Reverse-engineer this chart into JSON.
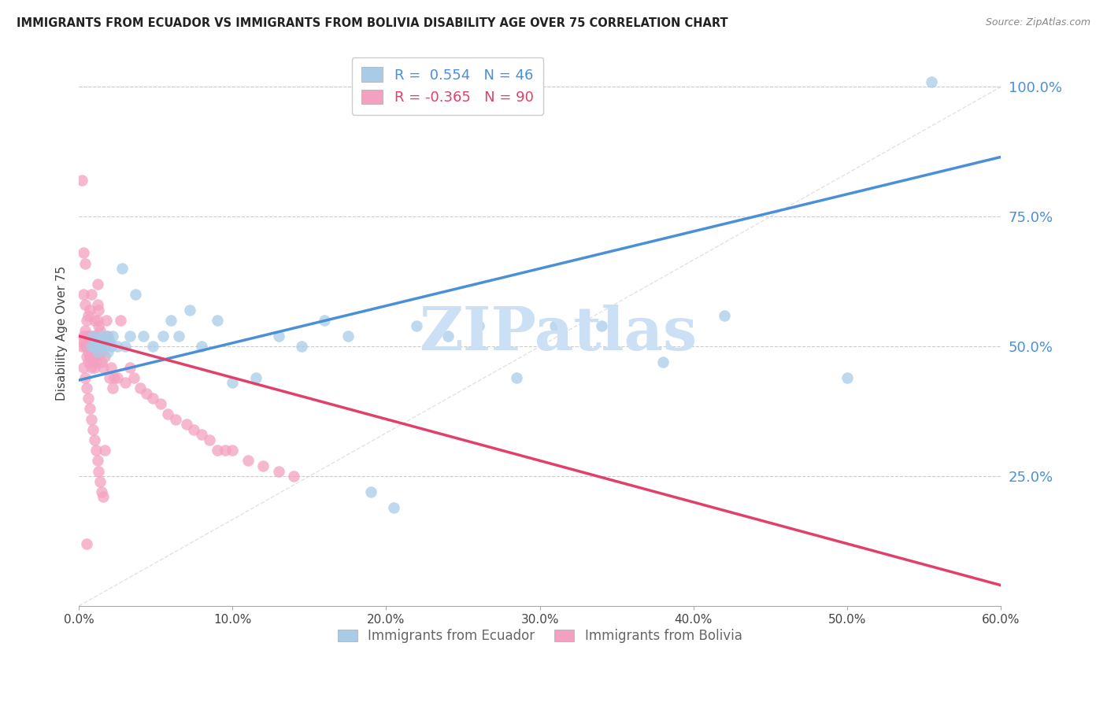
{
  "title": "IMMIGRANTS FROM ECUADOR VS IMMIGRANTS FROM BOLIVIA DISABILITY AGE OVER 75 CORRELATION CHART",
  "source": "Source: ZipAtlas.com",
  "ylabel": "Disability Age Over 75",
  "xlim": [
    0.0,
    0.6
  ],
  "ylim": [
    0.0,
    1.05
  ],
  "ecuador_color": "#a8cce8",
  "bolivia_color": "#f4a0c0",
  "trend_ecuador_color": "#4a90d9",
  "trend_bolivia_color": "#e0406a",
  "legend_ecuador_label": "R =  0.554   N = 46",
  "legend_bolivia_label": "R = -0.365   N = 90",
  "bottom_legend_ecuador": "Immigrants from Ecuador",
  "bottom_legend_bolivia": "Immigrants from Bolivia",
  "watermark": "ZIPatlas",
  "watermark_color": "#cce0f5",
  "background_color": "#ffffff",
  "ecuador_x": [
    0.008,
    0.009,
    0.01,
    0.011,
    0.012,
    0.013,
    0.014,
    0.015,
    0.016,
    0.017,
    0.018,
    0.019,
    0.02,
    0.021,
    0.022,
    0.025,
    0.028,
    0.03,
    0.033,
    0.037,
    0.042,
    0.048,
    0.055,
    0.06,
    0.065,
    0.072,
    0.08,
    0.09,
    0.1,
    0.115,
    0.13,
    0.145,
    0.16,
    0.175,
    0.19,
    0.205,
    0.22,
    0.24,
    0.26,
    0.285,
    0.31,
    0.34,
    0.38,
    0.42,
    0.5,
    0.555
  ],
  "ecuador_y": [
    0.5,
    0.52,
    0.5,
    0.51,
    0.49,
    0.51,
    0.5,
    0.52,
    0.51,
    0.5,
    0.52,
    0.49,
    0.51,
    0.5,
    0.52,
    0.5,
    0.65,
    0.5,
    0.52,
    0.6,
    0.52,
    0.5,
    0.52,
    0.55,
    0.52,
    0.57,
    0.5,
    0.55,
    0.43,
    0.44,
    0.52,
    0.5,
    0.55,
    0.52,
    0.22,
    0.19,
    0.54,
    0.52,
    0.54,
    0.44,
    0.54,
    0.54,
    0.47,
    0.56,
    0.44,
    1.01
  ],
  "bolivia_x": [
    0.002,
    0.002,
    0.003,
    0.003,
    0.003,
    0.004,
    0.004,
    0.004,
    0.005,
    0.005,
    0.005,
    0.005,
    0.006,
    0.006,
    0.006,
    0.006,
    0.007,
    0.007,
    0.007,
    0.007,
    0.008,
    0.008,
    0.008,
    0.008,
    0.009,
    0.009,
    0.009,
    0.01,
    0.01,
    0.01,
    0.01,
    0.01,
    0.011,
    0.011,
    0.012,
    0.012,
    0.012,
    0.013,
    0.013,
    0.014,
    0.015,
    0.015,
    0.016,
    0.017,
    0.018,
    0.019,
    0.02,
    0.021,
    0.022,
    0.023,
    0.025,
    0.027,
    0.03,
    0.033,
    0.036,
    0.04,
    0.044,
    0.048,
    0.053,
    0.058,
    0.063,
    0.07,
    0.075,
    0.08,
    0.085,
    0.09,
    0.095,
    0.1,
    0.11,
    0.12,
    0.13,
    0.14,
    0.003,
    0.004,
    0.005,
    0.006,
    0.007,
    0.008,
    0.009,
    0.01,
    0.011,
    0.012,
    0.013,
    0.014,
    0.015,
    0.016,
    0.017,
    0.003,
    0.004,
    0.005
  ],
  "bolivia_y": [
    0.5,
    0.82,
    0.51,
    0.52,
    0.6,
    0.5,
    0.53,
    0.58,
    0.48,
    0.5,
    0.52,
    0.55,
    0.47,
    0.49,
    0.52,
    0.56,
    0.48,
    0.5,
    0.52,
    0.57,
    0.46,
    0.48,
    0.51,
    0.6,
    0.47,
    0.49,
    0.52,
    0.46,
    0.48,
    0.5,
    0.52,
    0.55,
    0.47,
    0.49,
    0.55,
    0.58,
    0.62,
    0.54,
    0.57,
    0.53,
    0.47,
    0.49,
    0.46,
    0.48,
    0.55,
    0.52,
    0.44,
    0.46,
    0.42,
    0.44,
    0.44,
    0.55,
    0.43,
    0.46,
    0.44,
    0.42,
    0.41,
    0.4,
    0.39,
    0.37,
    0.36,
    0.35,
    0.34,
    0.33,
    0.32,
    0.3,
    0.3,
    0.3,
    0.28,
    0.27,
    0.26,
    0.25,
    0.46,
    0.44,
    0.42,
    0.4,
    0.38,
    0.36,
    0.34,
    0.32,
    0.3,
    0.28,
    0.26,
    0.24,
    0.22,
    0.21,
    0.3,
    0.68,
    0.66,
    0.12
  ]
}
